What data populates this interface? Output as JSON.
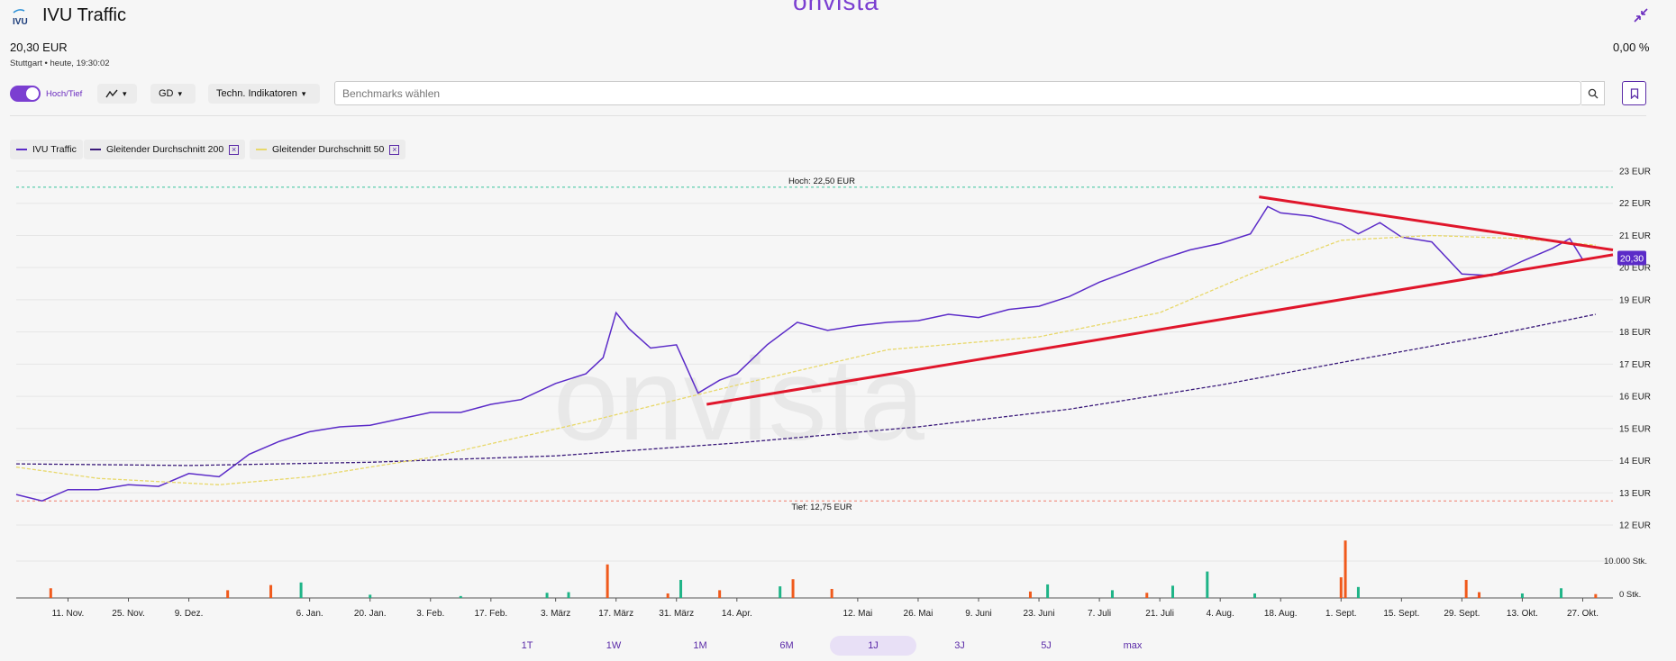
{
  "header": {
    "brand_watermark": "onvista",
    "logo_text": "IVU",
    "title": "IVU Traffic",
    "price": "20,30 EUR",
    "meta": "Stuttgart • heute, 19:30:02",
    "change": "0,00 %"
  },
  "toolbar": {
    "toggle_label": "Hoch/Tief",
    "chart_type_icon": "line-chart-icon",
    "gd_label": "GD",
    "indicators_label": "Techn. Indikatoren",
    "benchmark_placeholder": "Benchmarks wählen"
  },
  "legend": [
    {
      "label": "IVU Traffic",
      "color": "#5b2bc8",
      "dash": false,
      "removable": false
    },
    {
      "label": "Gleitender Durchschnitt 200",
      "color": "#3a1a7a",
      "dash": true,
      "removable": true
    },
    {
      "label": "Gleitender Durchschnitt 50",
      "color": "#e8d86a",
      "dash": true,
      "removable": true
    }
  ],
  "chart_data": {
    "type": "line",
    "series": [
      {
        "name": "IVU Traffic",
        "color": "#5b2bc8",
        "x": [
          "2023-10-30",
          "2023-11-05",
          "2023-11-11",
          "2023-11-18",
          "2023-11-25",
          "2023-12-02",
          "2023-12-09",
          "2023-12-16",
          "2023-12-23",
          "2023-12-30",
          "2024-01-06",
          "2024-01-13",
          "2024-01-20",
          "2024-01-27",
          "2024-02-03",
          "2024-02-10",
          "2024-02-17",
          "2024-02-24",
          "2024-03-03",
          "2024-03-10",
          "2024-03-14",
          "2024-03-17",
          "2024-03-20",
          "2024-03-25",
          "2024-03-31",
          "2024-04-05",
          "2024-04-10",
          "2024-04-14",
          "2024-04-21",
          "2024-04-28",
          "2024-05-05",
          "2024-05-12",
          "2024-05-19",
          "2024-05-26",
          "2024-06-02",
          "2024-06-09",
          "2024-06-16",
          "2024-06-23",
          "2024-06-30",
          "2024-07-07",
          "2024-07-14",
          "2024-07-21",
          "2024-07-28",
          "2024-08-04",
          "2024-08-11",
          "2024-08-15",
          "2024-08-18",
          "2024-08-25",
          "2024-09-01",
          "2024-09-05",
          "2024-09-10",
          "2024-09-15",
          "2024-09-22",
          "2024-09-29",
          "2024-10-06",
          "2024-10-13",
          "2024-10-20",
          "2024-10-24",
          "2024-10-27",
          "2024-10-30"
        ],
        "values": [
          12.95,
          12.75,
          13.1,
          13.1,
          13.25,
          13.2,
          13.6,
          13.5,
          14.2,
          14.6,
          14.9,
          15.05,
          15.1,
          15.3,
          15.5,
          15.5,
          15.75,
          15.9,
          16.4,
          16.7,
          17.2,
          18.6,
          18.1,
          17.5,
          17.6,
          16.1,
          16.5,
          16.7,
          17.6,
          18.3,
          18.05,
          18.2,
          18.3,
          18.35,
          18.55,
          18.45,
          18.7,
          18.8,
          19.1,
          19.55,
          19.9,
          20.25,
          20.55,
          20.75,
          21.05,
          21.9,
          21.7,
          21.6,
          21.35,
          21.05,
          21.4,
          20.95,
          20.8,
          19.8,
          19.75,
          20.2,
          20.6,
          20.9,
          20.25,
          20.3
        ]
      },
      {
        "name": "Gleitender Durchschnitt 200",
        "color": "#3a1a7a",
        "x": [
          "2023-10-30",
          "2023-12-09",
          "2024-01-20",
          "2024-03-03",
          "2024-04-14",
          "2024-05-26",
          "2024-06-30",
          "2024-08-04",
          "2024-09-01",
          "2024-10-06",
          "2024-10-30"
        ],
        "values": [
          13.9,
          13.85,
          13.95,
          14.15,
          14.55,
          15.05,
          15.6,
          16.35,
          17.05,
          17.9,
          18.55
        ]
      },
      {
        "name": "Gleitender Durchschnitt 50",
        "color": "#e8d86a",
        "x": [
          "2023-10-30",
          "2023-11-18",
          "2023-12-16",
          "2024-01-06",
          "2024-02-03",
          "2024-03-10",
          "2024-04-14",
          "2024-05-19",
          "2024-06-23",
          "2024-07-21",
          "2024-08-11",
          "2024-09-01",
          "2024-09-22",
          "2024-10-13",
          "2024-10-30"
        ],
        "values": [
          13.8,
          13.45,
          13.25,
          13.5,
          14.1,
          15.2,
          16.35,
          17.45,
          17.85,
          18.6,
          19.8,
          20.85,
          21.0,
          20.9,
          20.7
        ]
      }
    ],
    "volume": {
      "ylabel_ticks": [
        "10.000 Stk.",
        "0 Stk."
      ],
      "ymax": 12000,
      "bars": [
        {
          "x": "2023-11-07",
          "v": 1500,
          "dir": "down"
        },
        {
          "x": "2023-12-18",
          "v": 1200,
          "dir": "down"
        },
        {
          "x": "2023-12-28",
          "v": 2000,
          "dir": "down"
        },
        {
          "x": "2024-01-04",
          "v": 2400,
          "dir": "up"
        },
        {
          "x": "2024-01-20",
          "v": 500,
          "dir": "up"
        },
        {
          "x": "2024-02-10",
          "v": 300,
          "dir": "up"
        },
        {
          "x": "2024-03-01",
          "v": 800,
          "dir": "up"
        },
        {
          "x": "2024-03-06",
          "v": 900,
          "dir": "up"
        },
        {
          "x": "2024-03-15",
          "v": 5200,
          "dir": "down"
        },
        {
          "x": "2024-03-29",
          "v": 700,
          "dir": "down"
        },
        {
          "x": "2024-04-01",
          "v": 2800,
          "dir": "up"
        },
        {
          "x": "2024-04-10",
          "v": 1200,
          "dir": "down"
        },
        {
          "x": "2024-04-24",
          "v": 1800,
          "dir": "up"
        },
        {
          "x": "2024-04-27",
          "v": 2900,
          "dir": "down"
        },
        {
          "x": "2024-05-06",
          "v": 1400,
          "dir": "down"
        },
        {
          "x": "2024-06-21",
          "v": 1000,
          "dir": "down"
        },
        {
          "x": "2024-06-25",
          "v": 2100,
          "dir": "up"
        },
        {
          "x": "2024-07-10",
          "v": 1200,
          "dir": "up"
        },
        {
          "x": "2024-07-18",
          "v": 800,
          "dir": "down"
        },
        {
          "x": "2024-07-24",
          "v": 1900,
          "dir": "up"
        },
        {
          "x": "2024-08-01",
          "v": 4100,
          "dir": "up"
        },
        {
          "x": "2024-08-12",
          "v": 700,
          "dir": "up"
        },
        {
          "x": "2024-09-01",
          "v": 3200,
          "dir": "down"
        },
        {
          "x": "2024-09-02",
          "v": 8900,
          "dir": "down"
        },
        {
          "x": "2024-09-05",
          "v": 1700,
          "dir": "up"
        },
        {
          "x": "2024-09-30",
          "v": 2800,
          "dir": "down"
        },
        {
          "x": "2024-10-03",
          "v": 900,
          "dir": "down"
        },
        {
          "x": "2024-10-13",
          "v": 700,
          "dir": "up"
        },
        {
          "x": "2024-10-22",
          "v": 1500,
          "dir": "up"
        },
        {
          "x": "2024-10-30",
          "v": 600,
          "dir": "down"
        }
      ]
    },
    "hoch_label": "Hoch: 22,50 EUR",
    "tief_label": "Tief: 12,75 EUR",
    "hoch": 22.5,
    "tief": 12.75,
    "last_value_label": "20,30",
    "ylim": [
      12,
      23
    ],
    "y_ticks": [
      "23 EUR",
      "22 EUR",
      "21 EUR",
      "20 EUR",
      "19 EUR",
      "18 EUR",
      "17 EUR",
      "16 EUR",
      "15 EUR",
      "14 EUR",
      "13 EUR",
      "12 EUR"
    ],
    "x_ticks": [
      {
        "x": "2023-11-11",
        "label": "11. Nov."
      },
      {
        "x": "2023-11-25",
        "label": "25. Nov."
      },
      {
        "x": "2023-12-09",
        "label": "9. Dez."
      },
      {
        "x": "2024-01-06",
        "label": "6. Jan."
      },
      {
        "x": "2024-01-20",
        "label": "20. Jan."
      },
      {
        "x": "2024-02-03",
        "label": "3. Feb."
      },
      {
        "x": "2024-02-17",
        "label": "17. Feb."
      },
      {
        "x": "2024-03-03",
        "label": "3. März"
      },
      {
        "x": "2024-03-17",
        "label": "17. März"
      },
      {
        "x": "2024-03-31",
        "label": "31. März"
      },
      {
        "x": "2024-04-14",
        "label": "14. Apr."
      },
      {
        "x": "2024-05-12",
        "label": "12. Mai"
      },
      {
        "x": "2024-05-26",
        "label": "26. Mai"
      },
      {
        "x": "2024-06-09",
        "label": "9. Juni"
      },
      {
        "x": "2024-06-23",
        "label": "23. Juni"
      },
      {
        "x": "2024-07-07",
        "label": "7. Juli"
      },
      {
        "x": "2024-07-21",
        "label": "21. Juli"
      },
      {
        "x": "2024-08-04",
        "label": "4. Aug."
      },
      {
        "x": "2024-08-18",
        "label": "18. Aug."
      },
      {
        "x": "2024-09-01",
        "label": "1. Sept."
      },
      {
        "x": "2024-09-15",
        "label": "15. Sept."
      },
      {
        "x": "2024-09-29",
        "label": "29. Sept."
      },
      {
        "x": "2024-10-13",
        "label": "13. Okt."
      },
      {
        "x": "2024-10-27",
        "label": "27. Okt."
      }
    ],
    "trendlines": [
      {
        "color": "#e0162b",
        "from": {
          "x": "2024-04-07",
          "y": 15.75
        },
        "to": {
          "x": "2024-11-03",
          "y": 20.4
        }
      },
      {
        "color": "#e0162b",
        "from": {
          "x": "2024-08-13",
          "y": 22.2
        },
        "to": {
          "x": "2024-11-03",
          "y": 20.55
        }
      }
    ],
    "grid": true
  },
  "periods": [
    "1T",
    "1W",
    "1M",
    "6M",
    "1J",
    "3J",
    "5J",
    "max"
  ],
  "active_period": "1J",
  "colors": {
    "accent": "#7b3fd1",
    "up": "#1fb487",
    "down": "#f05a1c"
  }
}
